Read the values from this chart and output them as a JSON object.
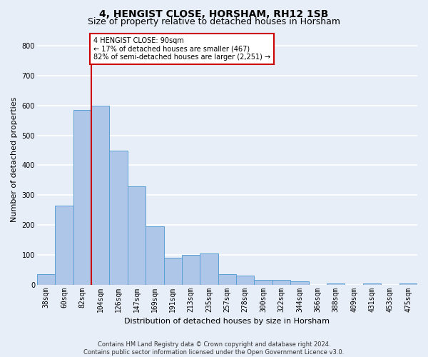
{
  "title": "4, HENGIST CLOSE, HORSHAM, RH12 1SB",
  "subtitle": "Size of property relative to detached houses in Horsham",
  "xlabel": "Distribution of detached houses by size in Horsham",
  "ylabel": "Number of detached properties",
  "footer_line1": "Contains HM Land Registry data © Crown copyright and database right 2024.",
  "footer_line2": "Contains public sector information licensed under the Open Government Licence v3.0.",
  "bin_labels": [
    "38sqm",
    "60sqm",
    "82sqm",
    "104sqm",
    "126sqm",
    "147sqm",
    "169sqm",
    "191sqm",
    "213sqm",
    "235sqm",
    "257sqm",
    "278sqm",
    "300sqm",
    "322sqm",
    "344sqm",
    "366sqm",
    "388sqm",
    "409sqm",
    "431sqm",
    "453sqm",
    "475sqm"
  ],
  "bar_values": [
    35,
    265,
    585,
    600,
    450,
    330,
    195,
    90,
    100,
    105,
    35,
    30,
    15,
    15,
    10,
    0,
    5,
    0,
    5,
    0,
    5
  ],
  "bar_color": "#aec6e8",
  "bar_edge_color": "#5a9fd4",
  "property_line_x": 2,
  "property_line_label": "4 HENGIST CLOSE: 90sqm",
  "annotation_line1": "← 17% of detached houses are smaller (467)",
  "annotation_line2": "82% of semi-detached houses are larger (2,251) →",
  "annotation_box_color": "#cc0000",
  "ylim": [
    0,
    840
  ],
  "yticks": [
    0,
    100,
    200,
    300,
    400,
    500,
    600,
    700,
    800
  ],
  "background_color": "#e8eef8",
  "grid_color": "#ffffff",
  "title_fontsize": 10,
  "subtitle_fontsize": 9,
  "axis_label_fontsize": 8,
  "tick_fontsize": 7,
  "footer_fontsize": 6
}
